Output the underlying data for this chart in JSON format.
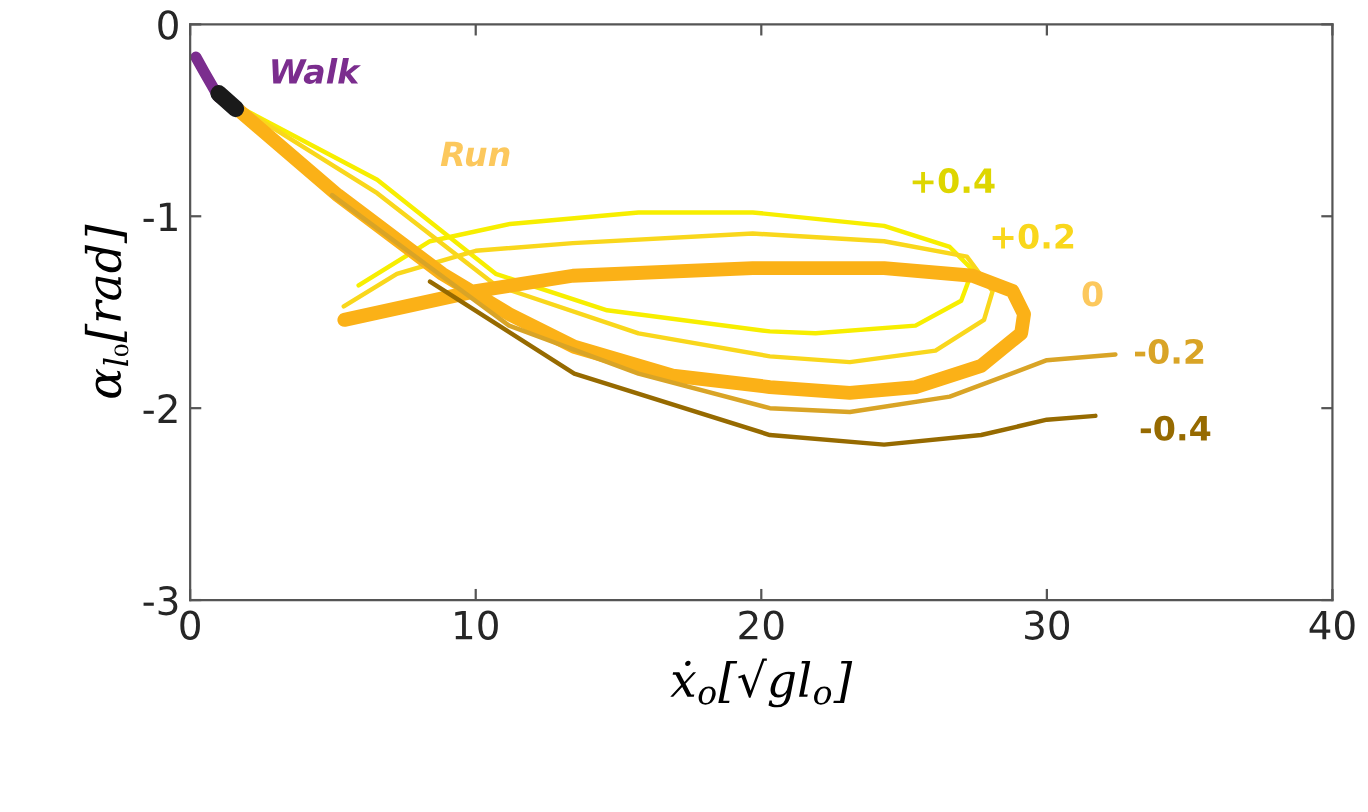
{
  "chart_data": {
    "type": "line",
    "xlabel": "ẋ$_{o}$[√gl$_{o}$]",
    "ylabel": "α$_{l₀}$[rad]",
    "xlim": [
      0,
      40
    ],
    "ylim": [
      -3,
      0
    ],
    "xticks": [
      0,
      10,
      20,
      30,
      40
    ],
    "yticks": [
      -3,
      -2,
      -1,
      0
    ],
    "grid": false,
    "legend": false,
    "marker": "none",
    "line_style": "solid",
    "series": [
      {
        "name": "Walk",
        "color": "#7b2d8e",
        "x": [
          0.2,
          0.5,
          1.0
        ],
        "values": [
          -0.17,
          -0.25,
          -0.38
        ]
      },
      {
        "name": "+0.4",
        "color": "#f7ee00",
        "x": [
          1.72,
          6.55,
          10.7,
          14.6,
          20.3,
          21.9,
          25.4,
          27.0,
          27.4,
          26.6,
          24.3,
          19.7,
          15.7,
          11.2,
          8.4,
          5.9
        ],
        "values": [
          -0.43,
          -0.81,
          -1.3,
          -1.49,
          -1.6,
          -1.61,
          -1.57,
          -1.44,
          -1.28,
          -1.16,
          -1.05,
          -0.98,
          -0.98,
          -1.04,
          -1.13,
          -1.36
        ]
      },
      {
        "name": "+0.2",
        "color": "#f9d71c",
        "x": [
          1.72,
          6.55,
          10.7,
          15.7,
          20.3,
          23.1,
          26.1,
          27.8,
          28.1,
          27.2,
          24.3,
          19.7,
          13.4,
          10.0,
          7.24,
          5.38
        ],
        "values": [
          -0.43,
          -0.88,
          -1.36,
          -1.61,
          -1.73,
          -1.76,
          -1.7,
          -1.54,
          -1.39,
          -1.21,
          -1.13,
          -1.09,
          -1.14,
          -1.18,
          -1.3,
          -1.47
        ]
      },
      {
        "name": "0",
        "color": "#fbb117",
        "x": [
          1.72,
          5.17,
          8.83,
          11.17,
          13.45,
          16.9,
          20.3,
          23.1,
          25.4,
          27.7,
          29.1,
          29.2,
          28.8,
          27.4,
          24.3,
          19.7,
          13.4,
          10.0,
          5.4
        ],
        "values": [
          -0.45,
          -0.89,
          -1.3,
          -1.51,
          -1.68,
          -1.83,
          -1.89,
          -1.92,
          -1.89,
          -1.78,
          -1.61,
          -1.51,
          -1.39,
          -1.31,
          -1.27,
          -1.27,
          -1.31,
          -1.39,
          -1.54
        ]
      },
      {
        "name": "-0.2",
        "color": "#d9a426",
        "x": [
          4.97,
          11.17,
          15.7,
          20.3,
          23.1,
          26.6,
          30.0,
          32.4
        ],
        "values": [
          -0.89,
          -1.57,
          -1.82,
          -2.0,
          -2.02,
          -1.94,
          -1.75,
          -1.72
        ]
      },
      {
        "name": "-0.4",
        "color": "#966a00",
        "x": [
          8.4,
          13.45,
          20.3,
          24.3,
          27.7,
          30.0,
          31.7
        ],
        "values": [
          -1.34,
          -1.82,
          -2.14,
          -2.19,
          -2.14,
          -2.06,
          -2.04
        ]
      },
      {
        "color": "#1a1a1a",
        "x": [
          1.0,
          1.6
        ],
        "values": [
          -0.36,
          -0.44
        ]
      }
    ],
    "annotations": [
      "Run"
    ]
  }
}
